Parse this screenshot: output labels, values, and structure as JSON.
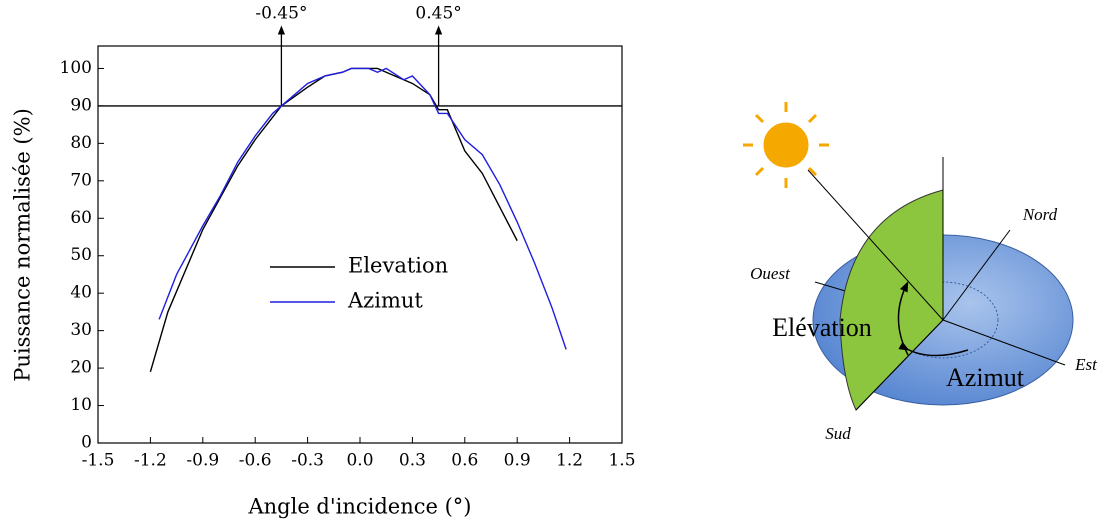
{
  "chart_data": {
    "type": "line",
    "x_label": "Angle d'incidence (°)",
    "y_label": "Puissance normalisée (%)",
    "xlim": [
      -1.5,
      1.5
    ],
    "xticks": [
      -1.5,
      -1.2,
      -0.9,
      -0.6,
      -0.3,
      {
        "value": 0,
        "label": "0.0"
      },
      0.3,
      0.6,
      0.9,
      1.2,
      1.5
    ],
    "ylim": [
      0,
      106
    ],
    "yticks": [
      0,
      10,
      20,
      30,
      40,
      50,
      60,
      70,
      80,
      90,
      100
    ],
    "legend": "center",
    "hline": 90,
    "annotations": [
      {
        "text": "-0.45°",
        "x": -0.45
      },
      {
        "text": "0.45°",
        "x": 0.45
      }
    ],
    "series": [
      {
        "name": "Elevation",
        "color": "#000000",
        "x": [
          -1.2,
          -1.1,
          -0.9,
          -0.7,
          -0.6,
          -0.45,
          -0.3,
          -0.2,
          -0.1,
          -0.05,
          0.1,
          0.15,
          0.2,
          0.3,
          0.4,
          0.45,
          0.5,
          0.6,
          0.7,
          0.8,
          0.9
        ],
        "values": [
          19,
          35,
          57,
          74,
          81,
          90,
          95,
          98,
          99,
          100,
          100,
          99,
          98,
          96,
          93,
          89,
          89,
          78,
          72,
          63,
          54
        ]
      },
      {
        "name": "Azimut",
        "color": "#1f1fe0",
        "x": [
          -1.15,
          -1.05,
          -0.9,
          -0.8,
          -0.7,
          -0.6,
          -0.5,
          -0.4,
          -0.3,
          -0.2,
          -0.1,
          -0.05,
          0.05,
          0.1,
          0.15,
          0.25,
          0.3,
          0.4,
          0.45,
          0.5,
          0.6,
          0.7,
          0.8,
          0.9,
          1.0,
          1.1,
          1.18
        ],
        "values": [
          33,
          45,
          58,
          66,
          75,
          82,
          88,
          92,
          96,
          98,
          99,
          100,
          100,
          99,
          100,
          97,
          98,
          93,
          88,
          88,
          81,
          77,
          69,
          59,
          48,
          36,
          25
        ]
      }
    ]
  },
  "diagram": {
    "labels": {
      "north": "Nord",
      "west": "Ouest",
      "east": "Est",
      "south": "Sud",
      "elevation": "Elévation",
      "azimuth": "Azimut"
    }
  }
}
